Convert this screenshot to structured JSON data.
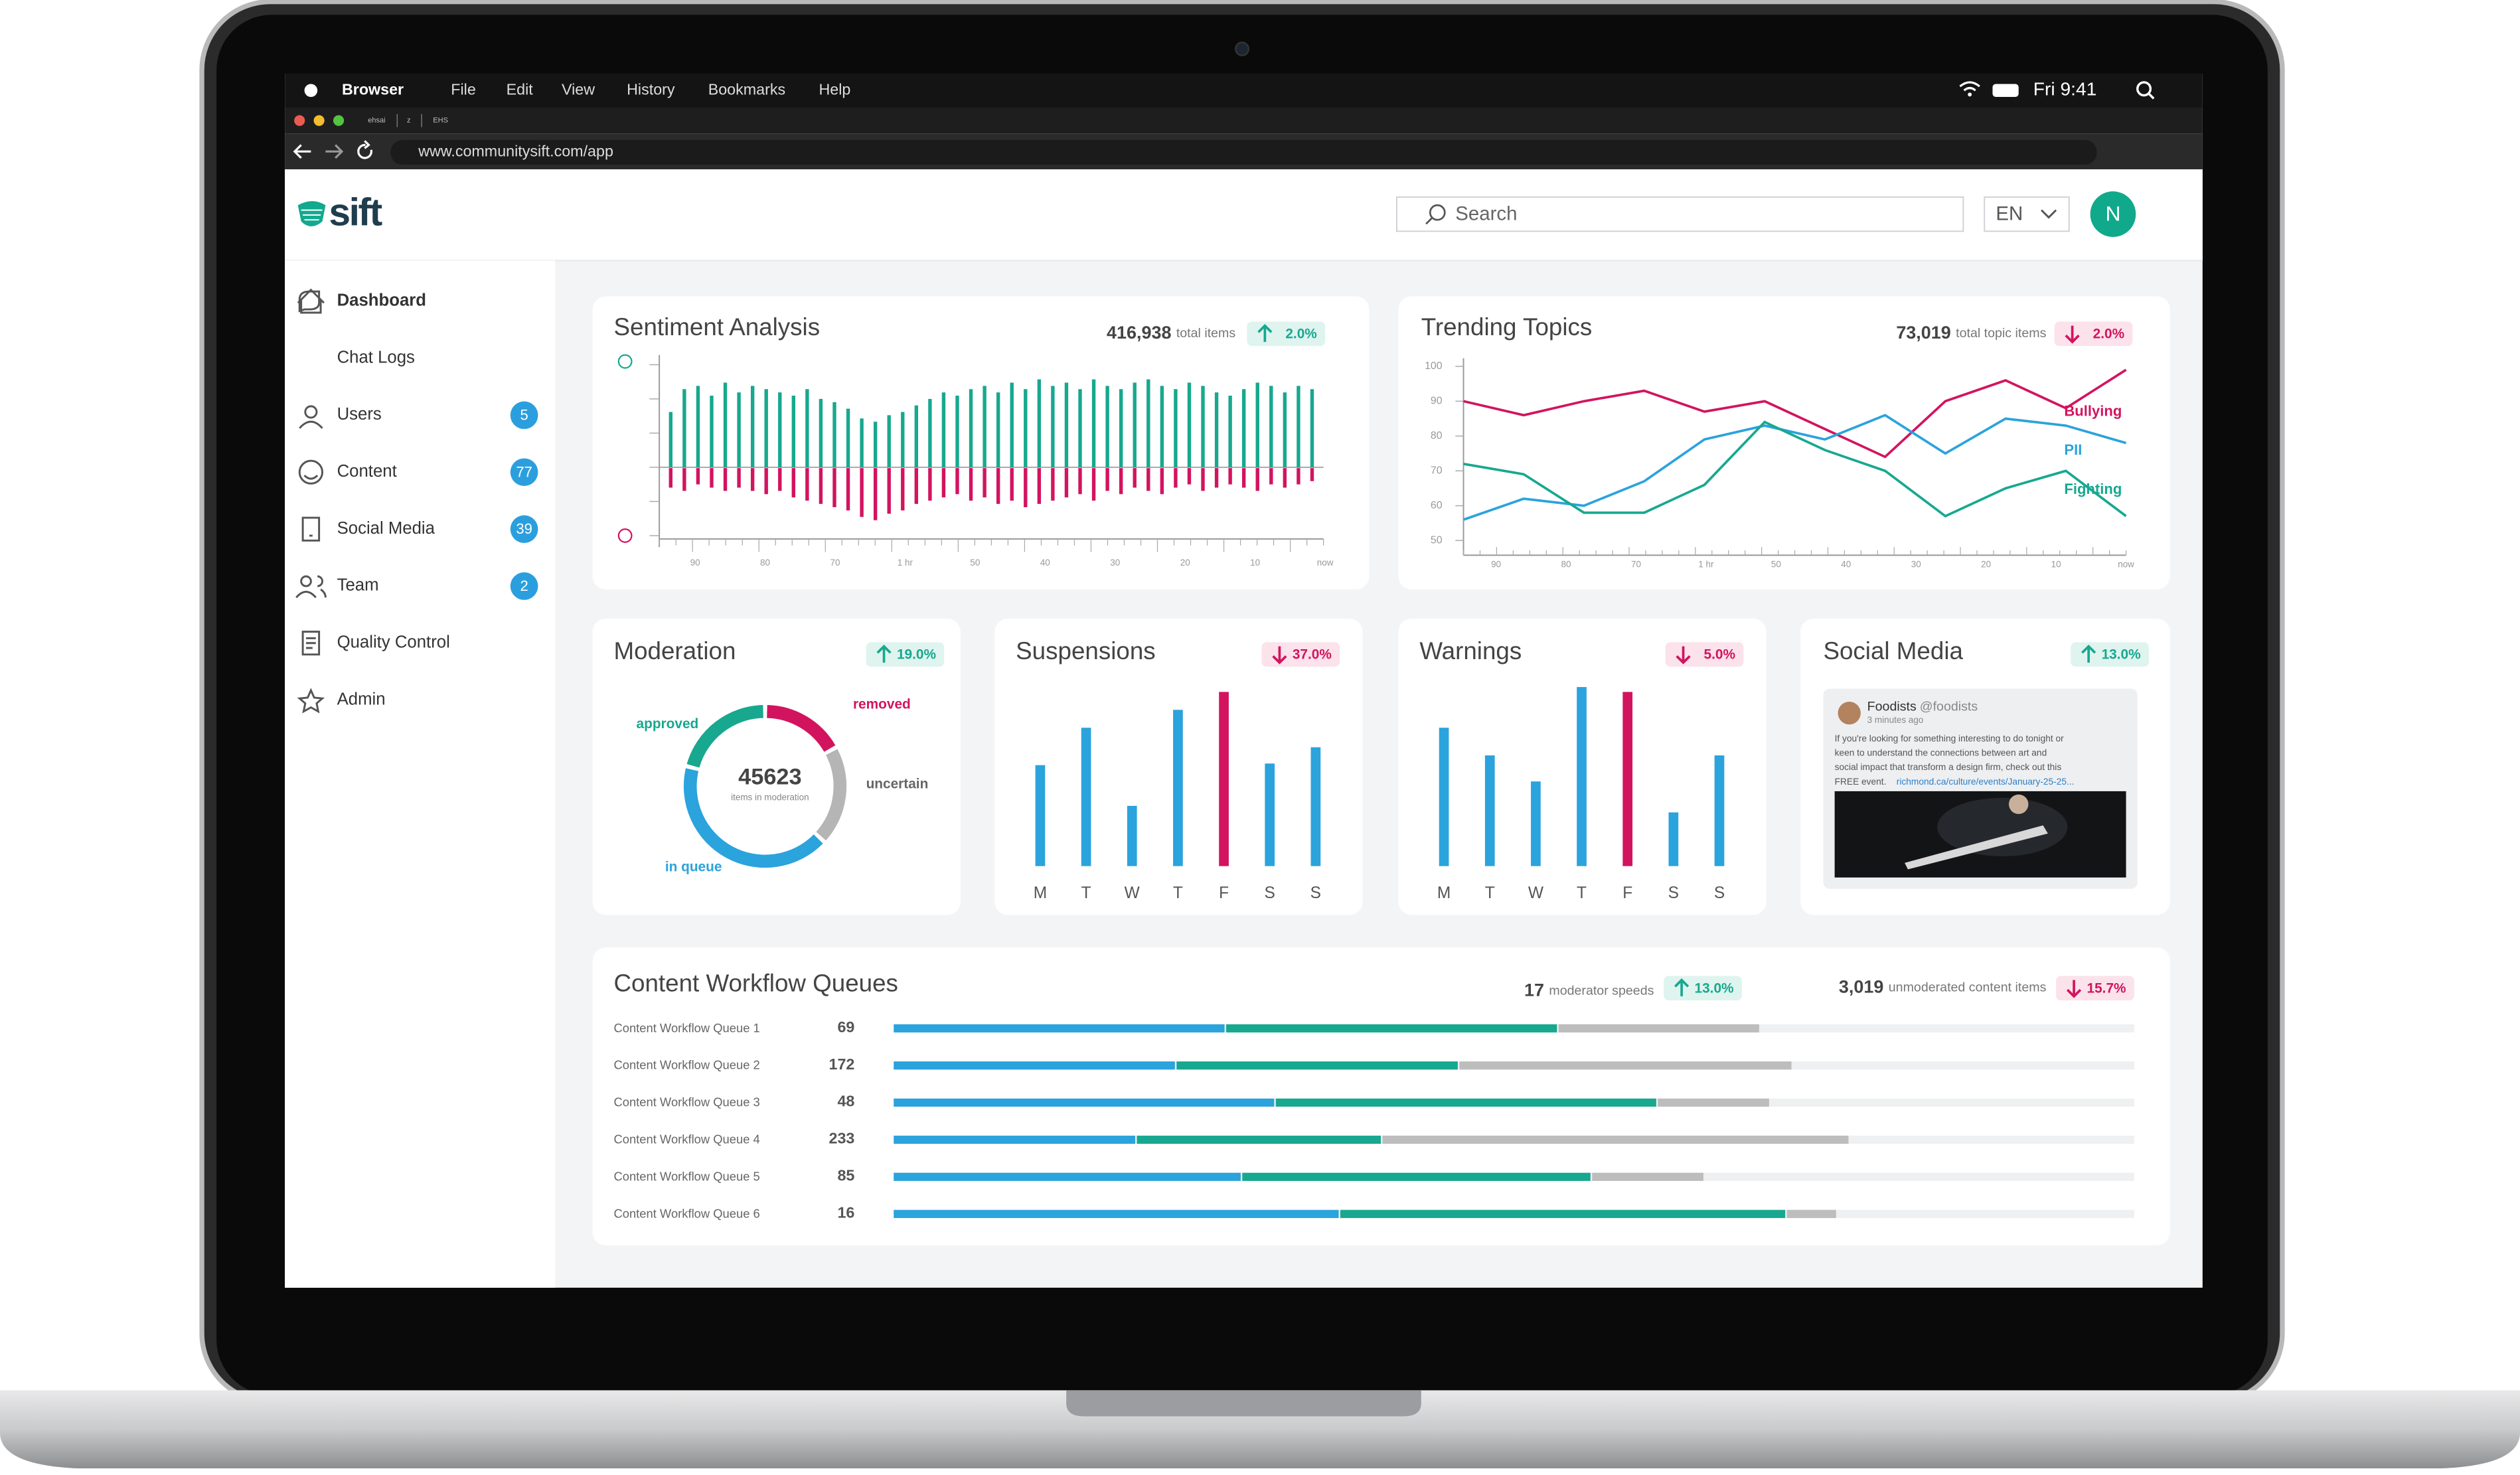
{
  "menu_bar": {
    "app": "Browser",
    "items": [
      "File",
      "Edit",
      "View",
      "History",
      "Bookmarks",
      "Help"
    ],
    "clock": "Fri 9:41"
  },
  "tabs": [
    "ehsai",
    "z",
    "EHS"
  ],
  "address": "www.communitysift.com/app",
  "header": {
    "logo": "sift",
    "search": "Search",
    "language": "EN",
    "avatar": "N"
  },
  "sidebar": [
    {
      "label": "Dashboard",
      "active": true
    },
    {
      "label": "Chat Logs"
    },
    {
      "label": "Users",
      "badge": 5
    },
    {
      "label": "Content",
      "badge": 77
    },
    {
      "label": "Social Media",
      "badge": 39
    },
    {
      "label": "Team",
      "badge": 2
    },
    {
      "label": "Quality Control"
    },
    {
      "label": "Admin"
    }
  ],
  "sentiment": {
    "title": "Sentiment Analysis",
    "total": "416,938",
    "total_label": "total items",
    "change": {
      "text": "2.0%",
      "direction": "up"
    },
    "positive": [
      34,
      48,
      50,
      44,
      52,
      46,
      50,
      48,
      46,
      44,
      48,
      42,
      40,
      36,
      30,
      28,
      32,
      34,
      38,
      42,
      46,
      44,
      48,
      50,
      46,
      52,
      48,
      54,
      50,
      52,
      48,
      54,
      50,
      48,
      52,
      54,
      50,
      48,
      52,
      50,
      46,
      44,
      48,
      52,
      50,
      46,
      50,
      48
    ],
    "negative": [
      12,
      14,
      10,
      12,
      14,
      12,
      14,
      16,
      14,
      18,
      20,
      22,
      24,
      26,
      30,
      32,
      28,
      26,
      22,
      20,
      18,
      16,
      20,
      18,
      22,
      20,
      24,
      22,
      20,
      18,
      16,
      20,
      14,
      16,
      12,
      14,
      16,
      12,
      10,
      14,
      12,
      10,
      12,
      14,
      10,
      12,
      10,
      8
    ],
    "x_labels": [
      "90",
      "80",
      "70",
      "1 hr",
      "50",
      "40",
      "30",
      "20",
      "10",
      "now"
    ],
    "positive_color": "#17a88f",
    "negative_color": "#d2145f"
  },
  "trending": {
    "title": "Trending Topics",
    "total": "73,019",
    "total_label": "total topic items",
    "change": {
      "text": "2.0%",
      "direction": "down"
    },
    "ylim": [
      50,
      100
    ],
    "yticks": [
      50,
      60,
      70,
      80,
      90,
      100
    ],
    "x_labels": [
      "90",
      "80",
      "70",
      "1 hr",
      "50",
      "40",
      "30",
      "20",
      "10",
      "now"
    ],
    "series": [
      {
        "name": "Bullying",
        "color": "#d2145f",
        "values": [
          90,
          86,
          90,
          93,
          87,
          90,
          82,
          74,
          90,
          96,
          88,
          99
        ]
      },
      {
        "name": "PII",
        "color": "#2ba3dc",
        "values": [
          56,
          62,
          60,
          67,
          79,
          83,
          79,
          86,
          75,
          85,
          83,
          78
        ]
      },
      {
        "name": "Fighting",
        "color": "#17a88f",
        "values": [
          72,
          69,
          58,
          58,
          66,
          84,
          76,
          70,
          57,
          65,
          70,
          57
        ]
      }
    ]
  },
  "moderation": {
    "title": "Moderation",
    "change": {
      "text": "19.0%",
      "direction": "up"
    },
    "total": "45623",
    "total_label": "items in moderation",
    "segments": [
      {
        "name": "removed",
        "value": 17,
        "color": "#d2145f"
      },
      {
        "name": "uncertain",
        "value": 20,
        "color": "#b5b5b5"
      },
      {
        "name": "in queue",
        "value": 42,
        "color": "#2ba3dc"
      },
      {
        "name": "approved",
        "value": 21,
        "color": "#17a88f"
      }
    ]
  },
  "suspensions": {
    "title": "Suspensions",
    "change": {
      "text": "37.0%",
      "direction": "down"
    },
    "days": [
      "M",
      "T",
      "W",
      "T",
      "F",
      "S",
      "S"
    ],
    "values": [
      62,
      85,
      37,
      96,
      107,
      63,
      73
    ],
    "highlight": 4
  },
  "warnings": {
    "title": "Warnings",
    "change": {
      "text": "5.0%",
      "direction": "down"
    },
    "days": [
      "M",
      "T",
      "W",
      "T",
      "F",
      "S",
      "S"
    ],
    "values": [
      85,
      68,
      52,
      110,
      107,
      33,
      68
    ],
    "highlight": 4
  },
  "social": {
    "title": "Social Media",
    "change": {
      "text": "13.0%",
      "direction": "up"
    },
    "post": {
      "name": "Foodists",
      "handle": "@foodists",
      "time": "3 minutes ago",
      "text_lines": [
        "If you're looking for something interesting to do tonight or",
        "keen to understand the connections between art and",
        "social impact that transform a design firm, check out this",
        "FREE event."
      ],
      "link": "richmond.ca/culture/events/January-25-25..."
    }
  },
  "workflow": {
    "title": "Content Workflow Queues",
    "speed": "17",
    "speed_label": "moderator speeds",
    "speed_change": {
      "text": "13.0%",
      "direction": "up"
    },
    "unmoderated": "3,019",
    "unmoderated_label": "unmoderated content items",
    "unmoderated_change": {
      "text": "15.7%",
      "direction": "down"
    },
    "segment_colors": [
      "#2ba3dc",
      "#17a88f",
      "#bdbdbd"
    ],
    "queues": [
      {
        "name": "Content Workflow Queue 1",
        "count": 69,
        "segments": [
          26.8,
          26.8,
          16.3
        ]
      },
      {
        "name": "Content Workflow Queue 2",
        "count": 172,
        "segments": [
          22.8,
          22.8,
          26.9
        ]
      },
      {
        "name": "Content Workflow Queue 3",
        "count": 48,
        "segments": [
          30.8,
          30.8,
          9.1
        ]
      },
      {
        "name": "Content Workflow Queue 4",
        "count": 233,
        "segments": [
          19.6,
          19.8,
          37.7
        ]
      },
      {
        "name": "Content Workflow Queue 5",
        "count": 85,
        "segments": [
          28.1,
          28.2,
          9.1
        ]
      },
      {
        "name": "Content Workflow Queue 6",
        "count": 16,
        "segments": [
          36,
          36,
          4.1
        ]
      }
    ]
  }
}
